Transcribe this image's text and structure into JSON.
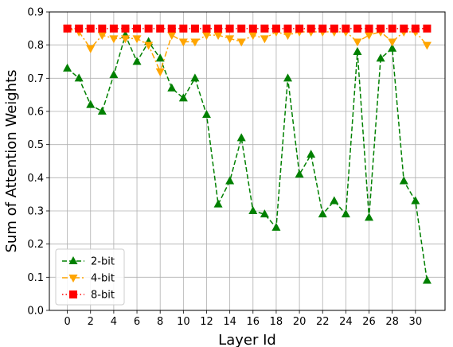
{
  "chart_data": {
    "type": "line",
    "title": "",
    "xlabel": "Layer Id",
    "ylabel": "Sum of Attention Weights",
    "xlim": [
      -1.55,
      32.55
    ],
    "ylim": [
      0.0,
      0.9
    ],
    "xticks": [
      0,
      2,
      4,
      6,
      8,
      10,
      12,
      14,
      16,
      18,
      20,
      22,
      24,
      26,
      28,
      30
    ],
    "yticks": [
      0.0,
      0.1,
      0.2,
      0.3,
      0.4,
      0.5,
      0.6,
      0.7,
      0.8,
      0.9
    ],
    "ytick_labels": [
      "0.0",
      "0.1",
      "0.2",
      "0.3",
      "0.4",
      "0.5",
      "0.6",
      "0.7",
      "0.8",
      "0.9"
    ],
    "grid": true,
    "legend_position": "lower-left",
    "x": [
      0,
      1,
      2,
      3,
      4,
      5,
      6,
      7,
      8,
      9,
      10,
      11,
      12,
      13,
      14,
      15,
      16,
      17,
      18,
      19,
      20,
      21,
      22,
      23,
      24,
      25,
      26,
      27,
      28,
      29,
      30,
      31
    ],
    "series": [
      {
        "name": "2-bit",
        "color": "#008000",
        "linestyle": "dashed",
        "marker": "triangle-up",
        "values": [
          0.73,
          0.7,
          0.62,
          0.6,
          0.71,
          0.83,
          0.75,
          0.81,
          0.76,
          0.67,
          0.64,
          0.7,
          0.59,
          0.32,
          0.39,
          0.52,
          0.3,
          0.29,
          0.25,
          0.7,
          0.41,
          0.47,
          0.29,
          0.33,
          0.29,
          0.78,
          0.28,
          0.76,
          0.79,
          0.39,
          0.33,
          0.09
        ]
      },
      {
        "name": "4-bit",
        "color": "#ffa500",
        "linestyle": "dashdot",
        "marker": "triangle-down",
        "values": [
          0.85,
          0.84,
          0.79,
          0.83,
          0.82,
          0.82,
          0.82,
          0.8,
          0.72,
          0.83,
          0.81,
          0.81,
          0.83,
          0.83,
          0.82,
          0.81,
          0.83,
          0.82,
          0.84,
          0.83,
          0.84,
          0.84,
          0.84,
          0.84,
          0.84,
          0.81,
          0.83,
          0.84,
          0.81,
          0.84,
          0.84,
          0.8
        ]
      },
      {
        "name": "8-bit",
        "color": "#ff0000",
        "linestyle": "dotted",
        "marker": "square",
        "values": [
          0.85,
          0.85,
          0.85,
          0.85,
          0.85,
          0.85,
          0.85,
          0.85,
          0.85,
          0.85,
          0.85,
          0.85,
          0.85,
          0.85,
          0.85,
          0.85,
          0.85,
          0.85,
          0.85,
          0.85,
          0.85,
          0.85,
          0.85,
          0.85,
          0.85,
          0.85,
          0.85,
          0.85,
          0.85,
          0.85,
          0.85,
          0.85
        ]
      }
    ]
  }
}
